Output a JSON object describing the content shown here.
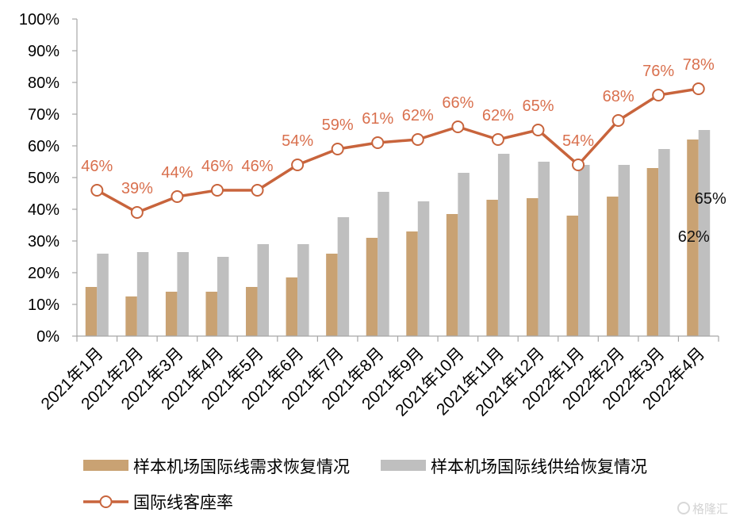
{
  "chart_data": {
    "type": "bar",
    "categories": [
      "2021年1月",
      "2021年2月",
      "2021年3月",
      "2021年4月",
      "2021年5月",
      "2021年6月",
      "2021年7月",
      "2021年8月",
      "2021年9月",
      "2021年10月",
      "2021年11月",
      "2021年12月",
      "2022年1月",
      "2022年2月",
      "2022年3月",
      "2022年4月"
    ],
    "series": [
      {
        "name": "样本机场国际线需求恢复情况",
        "type": "bar",
        "color": "#C9A273",
        "values": [
          15.5,
          12.5,
          14,
          14,
          15.5,
          18.5,
          26,
          31,
          33,
          38.5,
          43,
          43.5,
          38,
          44,
          53,
          62
        ],
        "labels": [
          "",
          "",
          "",
          "",
          "",
          "",
          "",
          "",
          "",
          "",
          "",
          "",
          "",
          "",
          "",
          "62%"
        ]
      },
      {
        "name": "样本机场国际线供给恢复情况",
        "type": "bar",
        "color": "#BFBFBF",
        "values": [
          26,
          26.5,
          26.5,
          25,
          29,
          29,
          37.5,
          45.5,
          42.5,
          51.5,
          57.5,
          55,
          54,
          54,
          59,
          65
        ],
        "labels": [
          "",
          "",
          "",
          "",
          "",
          "",
          "",
          "",
          "",
          "",
          "",
          "",
          "",
          "",
          "",
          "65%"
        ]
      },
      {
        "name": "国际线客座率",
        "type": "line",
        "color": "#C8643C",
        "values": [
          46,
          39,
          44,
          46,
          46,
          54,
          59,
          61,
          62,
          66,
          62,
          65,
          54,
          68,
          76,
          78
        ],
        "labels": [
          "46%",
          "39%",
          "44%",
          "46%",
          "46%",
          "54%",
          "59%",
          "61%",
          "62%",
          "66%",
          "62%",
          "65%",
          "54%",
          "68%",
          "76%",
          "78%"
        ]
      }
    ],
    "ylim": [
      0,
      100
    ],
    "yticks": [
      {
        "value": 0,
        "label": "0%"
      },
      {
        "value": 10,
        "label": "10%"
      },
      {
        "value": 20,
        "label": "20%"
      },
      {
        "value": 30,
        "label": "30%"
      },
      {
        "value": 40,
        "label": "40%"
      },
      {
        "value": 50,
        "label": "50%"
      },
      {
        "value": 60,
        "label": "60%"
      },
      {
        "value": 70,
        "label": "70%"
      },
      {
        "value": 80,
        "label": "80%"
      },
      {
        "value": 90,
        "label": "90%"
      },
      {
        "value": 100,
        "label": "100%"
      }
    ],
    "grid": false,
    "legend": "bottom"
  },
  "watermark": "格隆汇"
}
